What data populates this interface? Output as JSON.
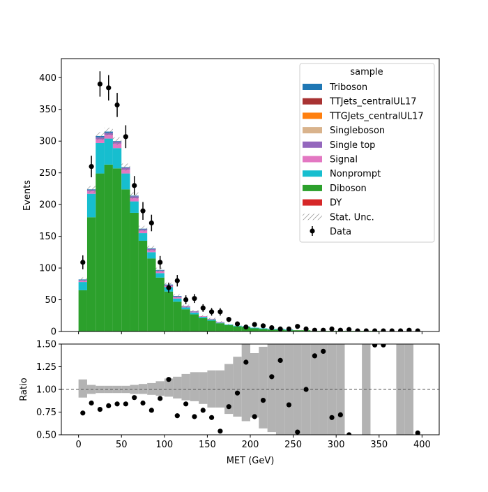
{
  "chart_data": {
    "type": "bar",
    "subtype": "stacked-histogram-with-ratio",
    "xlabel": "MET (GeV)",
    "xlim": [
      -20,
      420
    ],
    "xticks": [
      0,
      50,
      100,
      150,
      200,
      250,
      300,
      350,
      400
    ],
    "bin_edges": [
      0,
      10,
      20,
      30,
      40,
      50,
      60,
      70,
      80,
      90,
      100,
      110,
      120,
      130,
      140,
      150,
      160,
      170,
      180,
      190,
      200,
      210,
      220,
      230,
      240,
      250,
      260,
      270,
      280,
      290,
      300,
      310,
      320,
      330,
      340,
      350,
      360,
      370,
      380,
      390,
      400
    ],
    "main_panel": {
      "ylabel": "Events",
      "ylim": [
        0,
        430
      ],
      "yticks": [
        0,
        50,
        100,
        150,
        200,
        250,
        300,
        350,
        400
      ],
      "legend": {
        "title": "sample",
        "position": "top-right",
        "entries": [
          {
            "label": "Triboson",
            "color": "#1f77b4",
            "kind": "patch"
          },
          {
            "label": "TTJets_centralUL17",
            "color": "#a83232",
            "kind": "patch"
          },
          {
            "label": "TTGJets_centralUL17",
            "color": "#ff7f0e",
            "kind": "patch"
          },
          {
            "label": "Singleboson",
            "color": "#d9b38c",
            "kind": "patch"
          },
          {
            "label": "Single top",
            "color": "#9467bd",
            "kind": "patch"
          },
          {
            "label": "Signal",
            "color": "#e377c2",
            "kind": "patch"
          },
          {
            "label": "Nonprompt",
            "color": "#17becf",
            "kind": "patch"
          },
          {
            "label": "Diboson",
            "color": "#2ca02c",
            "kind": "patch"
          },
          {
            "label": "DY",
            "color": "#d62728",
            "kind": "patch"
          },
          {
            "label": "Stat. Unc.",
            "color": "#808080",
            "kind": "hatch"
          },
          {
            "label": "Data",
            "color": "#000000",
            "kind": "marker"
          }
        ]
      },
      "stack_series": [
        {
          "name": "Diboson",
          "color": "#2ca02c",
          "values": [
            65,
            180,
            249,
            263,
            257,
            224,
            187,
            143,
            115,
            85,
            63,
            47,
            35,
            27,
            21,
            17,
            13,
            10,
            8,
            7,
            5,
            4,
            3,
            3,
            2,
            2,
            2,
            1,
            1,
            1,
            1,
            1,
            1,
            1,
            1,
            0,
            0,
            0,
            0,
            0
          ]
        },
        {
          "name": "Nonprompt",
          "color": "#17becf",
          "values": [
            13,
            37,
            48,
            41,
            32,
            25,
            18,
            12,
            10,
            7,
            7,
            5,
            3,
            3,
            2,
            2,
            1,
            1,
            1,
            1,
            1,
            1,
            1,
            1,
            1,
            0,
            0,
            0,
            0,
            0,
            0,
            0,
            0,
            0,
            0,
            0,
            0,
            0,
            0,
            0
          ]
        },
        {
          "name": "Signal",
          "color": "#e377c2",
          "values": [
            2,
            4,
            6,
            6,
            7,
            6,
            5,
            4,
            3,
            3,
            2,
            2,
            1,
            1,
            1,
            1,
            1,
            0,
            0,
            0,
            0,
            0,
            0,
            0,
            0,
            0,
            0,
            0,
            0,
            0,
            0,
            0,
            0,
            0,
            0,
            0,
            0,
            0,
            0,
            0
          ]
        },
        {
          "name": "Single top",
          "color": "#9467bd",
          "values": [
            1,
            2,
            3,
            3,
            3,
            3,
            3,
            2,
            2,
            1,
            1,
            1,
            1,
            1,
            0,
            0,
            0,
            0,
            0,
            0,
            0,
            0,
            0,
            0,
            0,
            0,
            0,
            0,
            0,
            0,
            0,
            0,
            0,
            0,
            0,
            0,
            0,
            0,
            0,
            0
          ]
        },
        {
          "name": "Triboson",
          "color": "#1f77b4",
          "values": [
            1,
            1,
            2,
            2,
            1,
            1,
            1,
            1,
            1,
            1,
            1,
            1,
            0,
            0,
            0,
            0,
            0,
            0,
            0,
            0,
            0,
            0,
            0,
            0,
            0,
            0,
            0,
            0,
            0,
            0,
            0,
            0,
            0,
            0,
            0,
            0,
            0,
            0,
            0,
            0
          ]
        }
      ],
      "data_points": [
        {
          "x": 5,
          "y": 109,
          "err": 11
        },
        {
          "x": 15,
          "y": 260,
          "err": 17
        },
        {
          "x": 25,
          "y": 390,
          "err": 20
        },
        {
          "x": 35,
          "y": 384,
          "err": 20
        },
        {
          "x": 45,
          "y": 357,
          "err": 19
        },
        {
          "x": 55,
          "y": 307,
          "err": 18
        },
        {
          "x": 65,
          "y": 230,
          "err": 15
        },
        {
          "x": 75,
          "y": 190,
          "err": 14
        },
        {
          "x": 85,
          "y": 171,
          "err": 13
        },
        {
          "x": 95,
          "y": 109,
          "err": 10
        },
        {
          "x": 105,
          "y": 69,
          "err": 8
        },
        {
          "x": 115,
          "y": 80,
          "err": 9
        },
        {
          "x": 125,
          "y": 50,
          "err": 7
        },
        {
          "x": 135,
          "y": 52,
          "err": 7
        },
        {
          "x": 145,
          "y": 37,
          "err": 6
        },
        {
          "x": 155,
          "y": 31,
          "err": 6
        },
        {
          "x": 165,
          "y": 31,
          "err": 6
        },
        {
          "x": 175,
          "y": 19,
          "err": 4
        },
        {
          "x": 185,
          "y": 12,
          "err": 3
        },
        {
          "x": 195,
          "y": 7,
          "err": 3
        },
        {
          "x": 205,
          "y": 11,
          "err": 3
        },
        {
          "x": 215,
          "y": 9,
          "err": 3
        },
        {
          "x": 225,
          "y": 6,
          "err": 2
        },
        {
          "x": 235,
          "y": 4,
          "err": 2
        },
        {
          "x": 245,
          "y": 4,
          "err": 2
        },
        {
          "x": 255,
          "y": 8,
          "err": 3
        },
        {
          "x": 265,
          "y": 4,
          "err": 2
        },
        {
          "x": 275,
          "y": 2,
          "err": 1
        },
        {
          "x": 285,
          "y": 2,
          "err": 1
        },
        {
          "x": 295,
          "y": 4,
          "err": 2
        },
        {
          "x": 305,
          "y": 2,
          "err": 1
        },
        {
          "x": 315,
          "y": 3,
          "err": 2
        },
        {
          "x": 325,
          "y": 1,
          "err": 1
        },
        {
          "x": 335,
          "y": 1,
          "err": 1
        },
        {
          "x": 345,
          "y": 1,
          "err": 1
        },
        {
          "x": 355,
          "y": 1,
          "err": 1
        },
        {
          "x": 365,
          "y": 1,
          "err": 1
        },
        {
          "x": 375,
          "y": 1,
          "err": 1
        },
        {
          "x": 385,
          "y": 2,
          "err": 1
        },
        {
          "x": 395,
          "y": 1,
          "err": 1
        }
      ]
    },
    "ratio_panel": {
      "ylabel": "Ratio",
      "ylim": [
        0.5,
        1.5
      ],
      "yticks": [
        "0.50",
        "0.75",
        "1.00",
        "1.25",
        "1.50"
      ],
      "reference_line": 1.0,
      "unc_band_color": "#b3b3b3",
      "unc_band": [
        [
          0.91,
          1.11
        ],
        [
          0.95,
          1.05
        ],
        [
          0.96,
          1.04
        ],
        [
          0.96,
          1.04
        ],
        [
          0.96,
          1.04
        ],
        [
          0.96,
          1.04
        ],
        [
          0.95,
          1.05
        ],
        [
          0.95,
          1.06
        ],
        [
          0.94,
          1.07
        ],
        [
          0.93,
          1.09
        ],
        [
          0.92,
          1.12
        ],
        [
          0.9,
          1.14
        ],
        [
          0.88,
          1.17
        ],
        [
          0.87,
          1.19
        ],
        [
          0.84,
          1.19
        ],
        [
          0.8,
          1.21
        ],
        [
          0.8,
          1.21
        ],
        [
          0.73,
          1.28
        ],
        [
          0.7,
          1.36
        ],
        [
          0.65,
          1.5
        ],
        [
          0.69,
          1.4
        ],
        [
          0.57,
          1.47
        ],
        [
          0.53,
          1.5
        ],
        [
          0.5,
          1.5
        ],
        [
          0.5,
          1.5
        ],
        [
          0.5,
          1.5
        ],
        [
          0.5,
          1.5
        ],
        [
          0.5,
          1.5
        ],
        [
          0.5,
          1.5
        ],
        [
          0.5,
          1.5
        ],
        [
          0.5,
          1.5
        ],
        [
          1.0,
          1.0
        ],
        [
          1.0,
          1.0
        ],
        [
          0.5,
          1.5
        ],
        [
          1.0,
          1.0
        ],
        [
          1.0,
          1.0
        ],
        [
          1.0,
          1.0
        ],
        [
          0.5,
          1.5
        ],
        [
          0.5,
          1.5
        ],
        [
          1.0,
          1.0
        ]
      ],
      "points": [
        {
          "x": 5,
          "y": 0.74
        },
        {
          "x": 15,
          "y": 0.85
        },
        {
          "x": 25,
          "y": 0.78
        },
        {
          "x": 35,
          "y": 0.82
        },
        {
          "x": 45,
          "y": 0.84
        },
        {
          "x": 55,
          "y": 0.84
        },
        {
          "x": 65,
          "y": 0.91
        },
        {
          "x": 75,
          "y": 0.85
        },
        {
          "x": 85,
          "y": 0.77
        },
        {
          "x": 95,
          "y": 0.9
        },
        {
          "x": 105,
          "y": 1.11
        },
        {
          "x": 115,
          "y": 0.71
        },
        {
          "x": 125,
          "y": 0.84
        },
        {
          "x": 135,
          "y": 0.7
        },
        {
          "x": 145,
          "y": 0.77
        },
        {
          "x": 155,
          "y": 0.69
        },
        {
          "x": 165,
          "y": 0.54
        },
        {
          "x": 175,
          "y": 0.81
        },
        {
          "x": 185,
          "y": 0.96
        },
        {
          "x": 195,
          "y": 1.3
        },
        {
          "x": 205,
          "y": 0.7
        },
        {
          "x": 215,
          "y": 0.88
        },
        {
          "x": 225,
          "y": 1.14
        },
        {
          "x": 235,
          "y": 1.32
        },
        {
          "x": 245,
          "y": 0.83
        },
        {
          "x": 255,
          "y": 0.53
        },
        {
          "x": 265,
          "y": 1.0
        },
        {
          "x": 275,
          "y": 1.37
        },
        {
          "x": 285,
          "y": 1.42
        },
        {
          "x": 295,
          "y": 0.69
        },
        {
          "x": 305,
          "y": 0.72
        },
        {
          "x": 315,
          "y": 0.5
        },
        {
          "x": 345,
          "y": 1.49
        },
        {
          "x": 355,
          "y": 1.49
        },
        {
          "x": 395,
          "y": 0.52
        }
      ]
    }
  }
}
